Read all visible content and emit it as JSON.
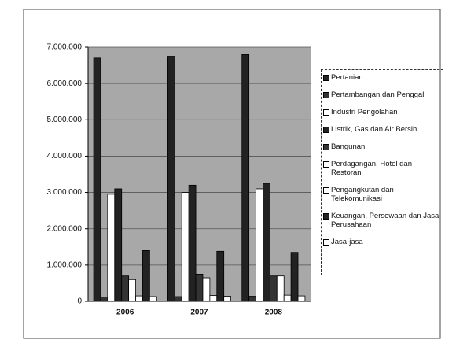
{
  "chart_data": {
    "type": "bar",
    "categories": [
      "2006",
      "2007",
      "2008"
    ],
    "series": [
      {
        "name": "Pertanian",
        "color": "#222222",
        "values": [
          6700000,
          6750000,
          6800000
        ]
      },
      {
        "name": "Pertambangan dan Penggal",
        "color": "#333333",
        "values": [
          120000,
          130000,
          140000
        ]
      },
      {
        "name": "Industri Pengolahan",
        "color": "#ffffff",
        "values": [
          2950000,
          3000000,
          3100000
        ]
      },
      {
        "name": "Listrik, Gas dan Air Bersih",
        "color": "#222222",
        "values": [
          3100000,
          3200000,
          3250000
        ]
      },
      {
        "name": "Bangunan",
        "color": "#333333",
        "values": [
          700000,
          750000,
          700000
        ]
      },
      {
        "name": "Perdagangan, Hotel dan Restoran",
        "color": "#ffffff",
        "values": [
          600000,
          650000,
          700000
        ]
      },
      {
        "name": "Pengangkutan dan Telekomunikasi",
        "color": "#ffffff",
        "values": [
          150000,
          160000,
          170000
        ]
      },
      {
        "name": "Keuangan, Persewaan dan Jasa Perusahaan",
        "color": "#222222",
        "values": [
          1400000,
          1380000,
          1350000
        ]
      },
      {
        "name": "Jasa-jasa",
        "color": "#ffffff",
        "values": [
          130000,
          140000,
          150000
        ]
      }
    ],
    "ylim": [
      0,
      7000000
    ],
    "yticks": [
      0,
      {
        "value": 1000000,
        "label": "1.000.000"
      },
      {
        "value": 2000000,
        "label": "2.000.000"
      },
      {
        "value": 3000000,
        "label": "3.000.000"
      },
      {
        "value": 4000000,
        "label": "4.000.000"
      },
      {
        "value": 5000000,
        "label": "5.000.000"
      },
      {
        "value": 6000000,
        "label": "6.000.000"
      },
      {
        "value": 7000000,
        "label": "7.000.000"
      }
    ],
    "grid": true,
    "legend": "right"
  }
}
